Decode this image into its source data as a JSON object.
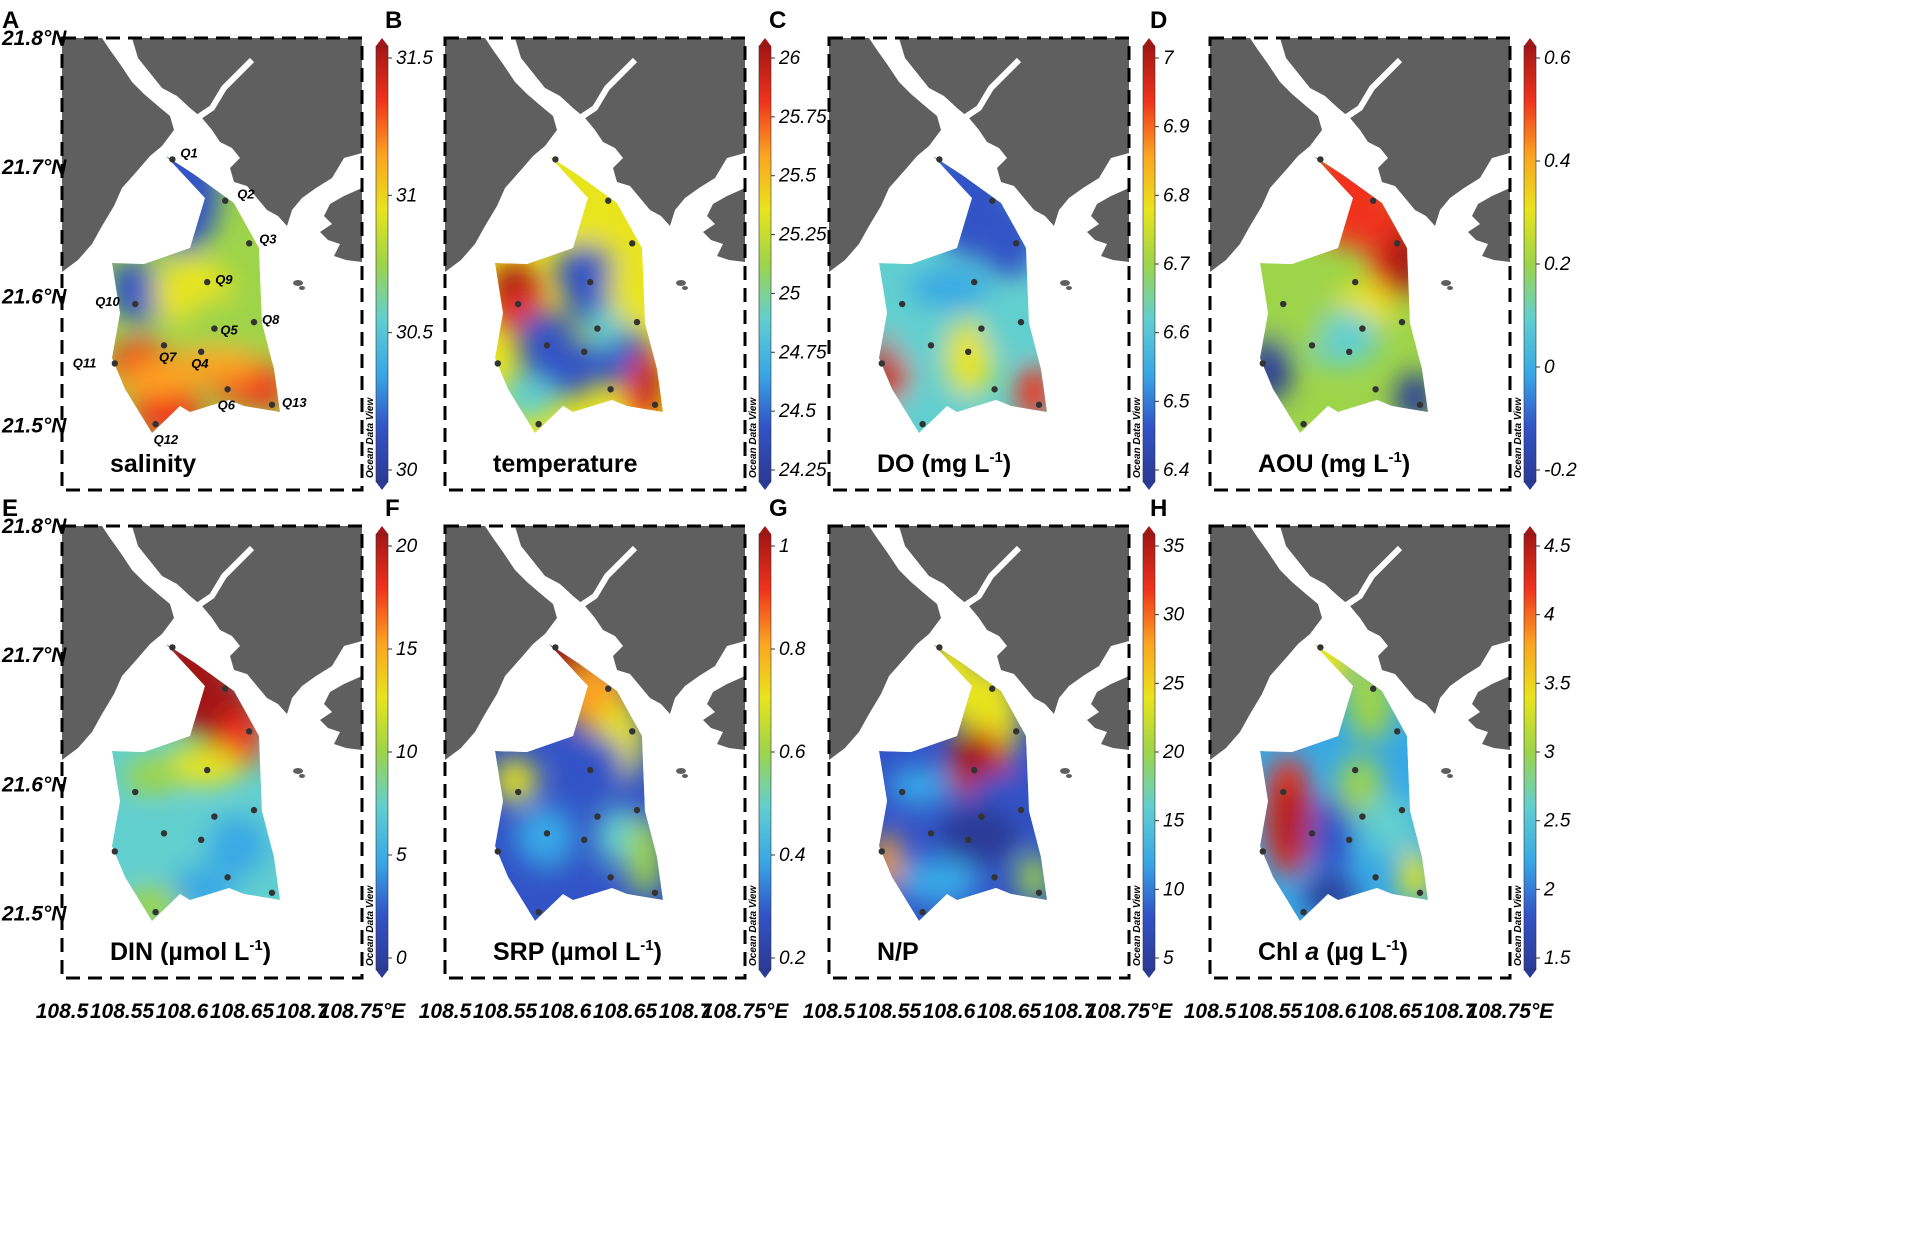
{
  "figure": {
    "lat_labels": [
      "21.8°N",
      "21.7°N",
      "21.6°N",
      "21.5°N"
    ],
    "lon_labels": [
      "108.5",
      "108.55",
      "108.6",
      "108.65",
      "108.7",
      "108.75°E"
    ],
    "watermark": "Ocean Data View",
    "colors": {
      "land": "#5f5f5f",
      "colormap": [
        "#2b3a96",
        "#3253c6",
        "#38a8e6",
        "#62cfcf",
        "#9ed44a",
        "#e8e41c",
        "#fca321",
        "#f0321c",
        "#a21616"
      ]
    },
    "stations": [
      {
        "id": "Q1",
        "lon": 108.592,
        "lat": 21.706
      },
      {
        "id": "Q2",
        "lon": 108.636,
        "lat": 21.674
      },
      {
        "id": "Q3",
        "lon": 108.656,
        "lat": 21.641
      },
      {
        "id": "Q9",
        "lon": 108.621,
        "lat": 21.611
      },
      {
        "id": "Q10",
        "lon": 108.561,
        "lat": 21.594
      },
      {
        "id": "Q8",
        "lon": 108.66,
        "lat": 21.58
      },
      {
        "id": "Q5",
        "lon": 108.627,
        "lat": 21.575
      },
      {
        "id": "Q7",
        "lon": 108.585,
        "lat": 21.562
      },
      {
        "id": "Q4",
        "lon": 108.616,
        "lat": 21.557
      },
      {
        "id": "Q11",
        "lon": 108.544,
        "lat": 21.548
      },
      {
        "id": "Q6",
        "lon": 108.638,
        "lat": 21.528
      },
      {
        "id": "Q13",
        "lon": 108.675,
        "lat": 21.516
      },
      {
        "id": "Q12",
        "lon": 108.578,
        "lat": 21.501
      }
    ],
    "panels": [
      {
        "letter": "A",
        "label": "salinity",
        "cbar_ticks": [
          "31.5",
          "31",
          "30.5",
          "30"
        ],
        "field_type": "salinity",
        "show_station_labels": true
      },
      {
        "letter": "B",
        "label": "temperature",
        "cbar_ticks": [
          "26",
          "25.75",
          "25.5",
          "25.25",
          "25",
          "24.75",
          "24.5",
          "24.25"
        ],
        "field_type": "temperature"
      },
      {
        "letter": "C",
        "label": "DO (mg L",
        "label_sup": "-1",
        "label_close": ")",
        "cbar_ticks": [
          "7",
          "6.9",
          "6.8",
          "6.7",
          "6.6",
          "6.5",
          "6.4"
        ],
        "field_type": "do"
      },
      {
        "letter": "D",
        "label": "AOU (mg L",
        "label_sup": "-1",
        "label_close": ")",
        "cbar_ticks": [
          "0.6",
          "0.4",
          "0.2",
          "0",
          "-0.2"
        ],
        "field_type": "aou"
      },
      {
        "letter": "E",
        "label": "DIN (µmol L",
        "label_sup": "-1",
        "label_close": ")",
        "cbar_ticks": [
          "20",
          "15",
          "10",
          "5",
          "0"
        ],
        "field_type": "din"
      },
      {
        "letter": "F",
        "label": "SRP (µmol L",
        "label_sup": "-1",
        "label_close": ")",
        "cbar_ticks": [
          "1",
          "0.8",
          "0.6",
          "0.4",
          "0.2"
        ],
        "field_type": "srp"
      },
      {
        "letter": "G",
        "label": "N/P",
        "cbar_ticks": [
          "35",
          "30",
          "25",
          "20",
          "15",
          "10",
          "5"
        ],
        "field_type": "np"
      },
      {
        "letter": "H",
        "label": "Chl ",
        "label_italic": "a",
        "label_rest": " (µg L",
        "label_sup": "-1",
        "label_close": ")",
        "cbar_ticks": [
          "4.5",
          "4",
          "3.5",
          "3",
          "2.5",
          "2",
          "1.5"
        ],
        "field_type": "chl"
      }
    ]
  }
}
